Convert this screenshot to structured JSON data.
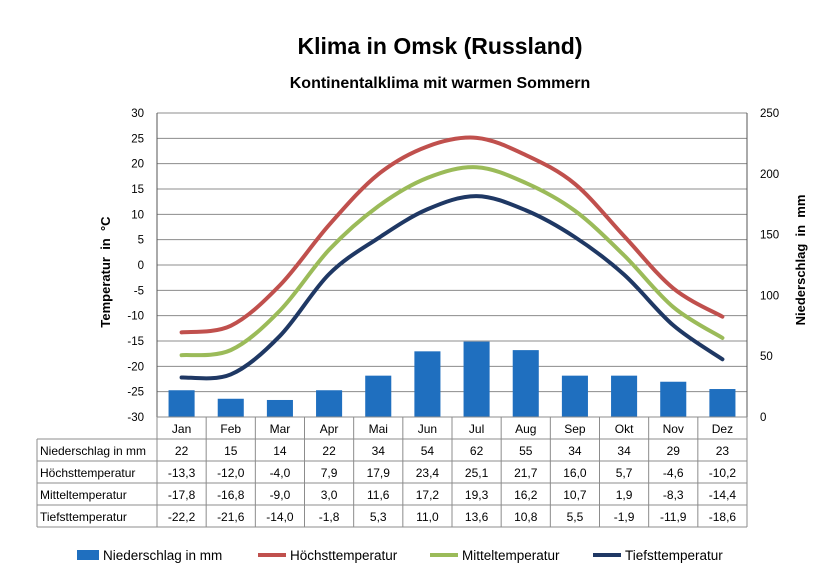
{
  "chart_data": {
    "type": "bar+line",
    "title": "Klima in Omsk (Russland)",
    "subtitle": "Kontinentalklima mit warmen Sommern",
    "ylabel_left": "Temperatur  in  °C",
    "ylabel_right": "Niederschlag  in  mm",
    "categories": [
      "Jan",
      "Feb",
      "Mar",
      "Apr",
      "Mai",
      "Jun",
      "Jul",
      "Aug",
      "Sep",
      "Okt",
      "Nov",
      "Dez"
    ],
    "y_left": {
      "min": -30,
      "max": 30,
      "step": 5,
      "ticks": [
        "30",
        "25",
        "20",
        "15",
        "10",
        "5",
        "0",
        "-5",
        "-10",
        "-15",
        "-20",
        "-25",
        "-30"
      ]
    },
    "y_right": {
      "min": 0,
      "max": 250,
      "step": 50,
      "ticks": [
        "250",
        "200",
        "150",
        "100",
        "50",
        "0"
      ]
    },
    "grid": true,
    "legend_position": "bottom",
    "series": [
      {
        "name": "Niederschlag in mm",
        "type": "bar",
        "axis": "right",
        "color": "#1f6fbf",
        "values": [
          22,
          15,
          14,
          22,
          34,
          54,
          62,
          55,
          34,
          34,
          29,
          23
        ],
        "labels": [
          "22",
          "15",
          "14",
          "22",
          "34",
          "54",
          "62",
          "55",
          "34",
          "34",
          "29",
          "23"
        ]
      },
      {
        "name": "Höchsttemperatur",
        "type": "line",
        "axis": "left",
        "color": "#c0504d",
        "values": [
          -13.3,
          -12.0,
          -4.0,
          7.9,
          17.9,
          23.4,
          25.1,
          21.7,
          16.0,
          5.7,
          -4.6,
          -10.2
        ],
        "labels": [
          "-13,3",
          "-12,0",
          "-4,0",
          "7,9",
          "17,9",
          "23,4",
          "25,1",
          "21,7",
          "16,0",
          "5,7",
          "-4,6",
          "-10,2"
        ]
      },
      {
        "name": "Mitteltemperatur",
        "type": "line",
        "axis": "left",
        "color": "#9bbb59",
        "values": [
          -17.8,
          -16.8,
          -9.0,
          3.0,
          11.6,
          17.2,
          19.3,
          16.2,
          10.7,
          1.9,
          -8.3,
          -14.4
        ],
        "labels": [
          "-17,8",
          "-16,8",
          "-9,0",
          "3,0",
          "11,6",
          "17,2",
          "19,3",
          "16,2",
          "10,7",
          "1,9",
          "-8,3",
          "-14,4"
        ]
      },
      {
        "name": "Tiefsttemperatur",
        "type": "line",
        "axis": "left",
        "color": "#1f3864",
        "values": [
          -22.2,
          -21.6,
          -14.0,
          -1.8,
          5.3,
          11.0,
          13.6,
          10.8,
          5.5,
          -1.9,
          -11.9,
          -18.6
        ],
        "labels": [
          "-22,2",
          "-21,6",
          "-14,0",
          "-1,8",
          "5,3",
          "11,0",
          "13,6",
          "10,8",
          "5,5",
          "-1,9",
          "-11,9",
          "-18,6"
        ]
      }
    ]
  }
}
